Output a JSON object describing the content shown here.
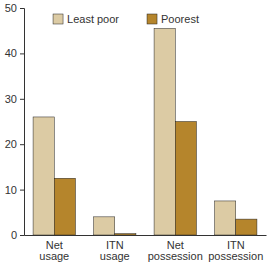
{
  "chart_data": {
    "type": "bar",
    "categories": [
      "Net usage",
      "ITN usage",
      "Net possession",
      "ITN possession"
    ],
    "series": [
      {
        "name": "Least poor",
        "color": "#dccba4",
        "values": [
          26,
          4,
          45.5,
          7.5
        ]
      },
      {
        "name": "Poorest",
        "color": "#b5852c",
        "values": [
          12.5,
          0.3,
          25,
          3.5
        ]
      }
    ],
    "ylim": [
      0,
      50
    ],
    "yticks": [
      0,
      10,
      20,
      30,
      40,
      50
    ],
    "legend": "top",
    "grid": false
  }
}
